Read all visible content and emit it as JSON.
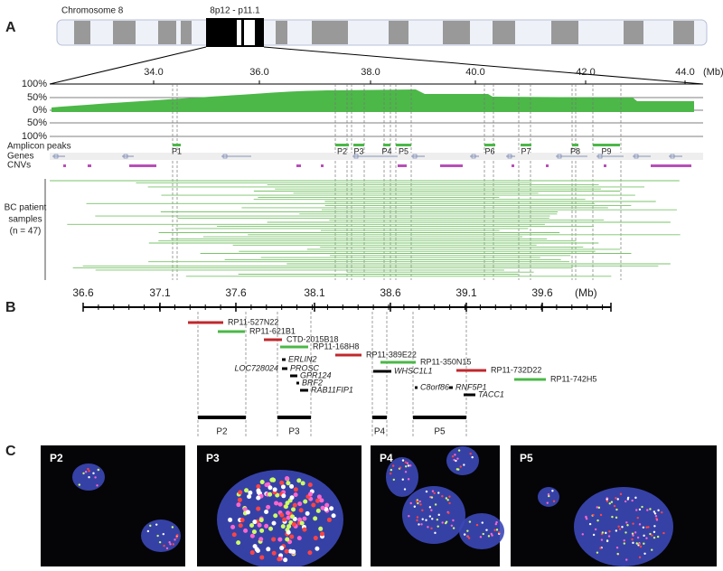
{
  "panel_a": {
    "label": "A",
    "chromosome": "Chromosome 8",
    "band": "8p12 - p11.1",
    "axis_ticks": [
      "34.0",
      "36.0",
      "38.0",
      "40.0",
      "42.0",
      "44.0"
    ],
    "axis_unit": "(Mb)",
    "frequency_labels": [
      "100%",
      "50%",
      "0%",
      "50%",
      "100%"
    ],
    "rows": [
      "Amplicon peaks",
      "Genes",
      "CNVs"
    ],
    "peaks": [
      "P1",
      "P2",
      "P3",
      "P4",
      "P5",
      "P6",
      "P7",
      "P8",
      "P9"
    ],
    "samples_label": [
      "BC patient",
      "samples",
      "(n = 47)"
    ]
  },
  "panel_b": {
    "label": "B",
    "axis_ticks": [
      "36.6",
      "37.1",
      "37.6",
      "38.1",
      "38.6",
      "39.1",
      "39.6"
    ],
    "axis_unit": "(Mb)",
    "clones": [
      "RP11-527N22",
      "RP11-621B1",
      "CTD-2015B18",
      "RP11-168H8",
      "RP11-389E22",
      "RP11-350N15",
      "RP11-732D22",
      "RP11-742H5"
    ],
    "genes": [
      "ERLIN2",
      "LOC728024",
      "PROSC",
      "GPR124",
      "BRF2",
      "RAB11FIP1",
      "WHSC1L1",
      "C8orf86",
      "RNF5P1",
      "TACC1"
    ],
    "regions": [
      "P2",
      "P3",
      "P4",
      "P5"
    ]
  },
  "panel_c": {
    "label": "C",
    "images": [
      "P2",
      "P3",
      "P4",
      "P5"
    ]
  }
}
